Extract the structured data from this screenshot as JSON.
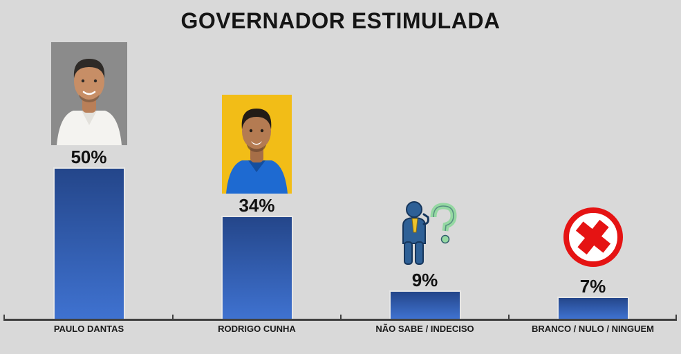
{
  "title": "GOVERNADOR ESTIMULADA",
  "chart_data": {
    "type": "bar",
    "title": "GOVERNADOR ESTIMULADA",
    "categories": [
      "PAULO DANTAS",
      "RODRIGO CUNHA",
      "NÃO SABE / INDECISO",
      "BRANCO / NULO / NINGUEM"
    ],
    "values": [
      50,
      34,
      9,
      7
    ],
    "ylim": [
      0,
      55
    ],
    "grid": false,
    "legend": false,
    "bar_color_top": "#24468a",
    "bar_color_bottom": "#3f72d0",
    "columns": [
      {
        "label": "PAULO DANTAS",
        "value": 50,
        "value_label": "50%",
        "visual": "candidate-photo-gray-background"
      },
      {
        "label": "RODRIGO CUNHA",
        "value": 34,
        "value_label": "34%",
        "visual": "candidate-photo-yellow-background"
      },
      {
        "label": "NÃO SABE / INDECISO",
        "value": 9,
        "value_label": "9%",
        "visual": "undecided-person-question-icon"
      },
      {
        "label": "BRANCO / NULO / NINGUEM",
        "value": 7,
        "value_label": "7%",
        "visual": "red-x-circle-icon"
      }
    ]
  },
  "colors": {
    "background": "#d9d9d9",
    "axis": "#3f3f3f",
    "text": "#111111",
    "photo1_background": "#8b8b8b",
    "photo1_shirt": "#f4f3f0",
    "photo2_background": "#f2bd17",
    "photo2_shirt": "#1e6ad1",
    "skin_1": "#c78e66",
    "skin_2": "#b47b52",
    "question_green": "#95d8a2",
    "person_blue": "#2e6096",
    "tie_yellow": "#edc32c",
    "x_red": "#e51313"
  }
}
